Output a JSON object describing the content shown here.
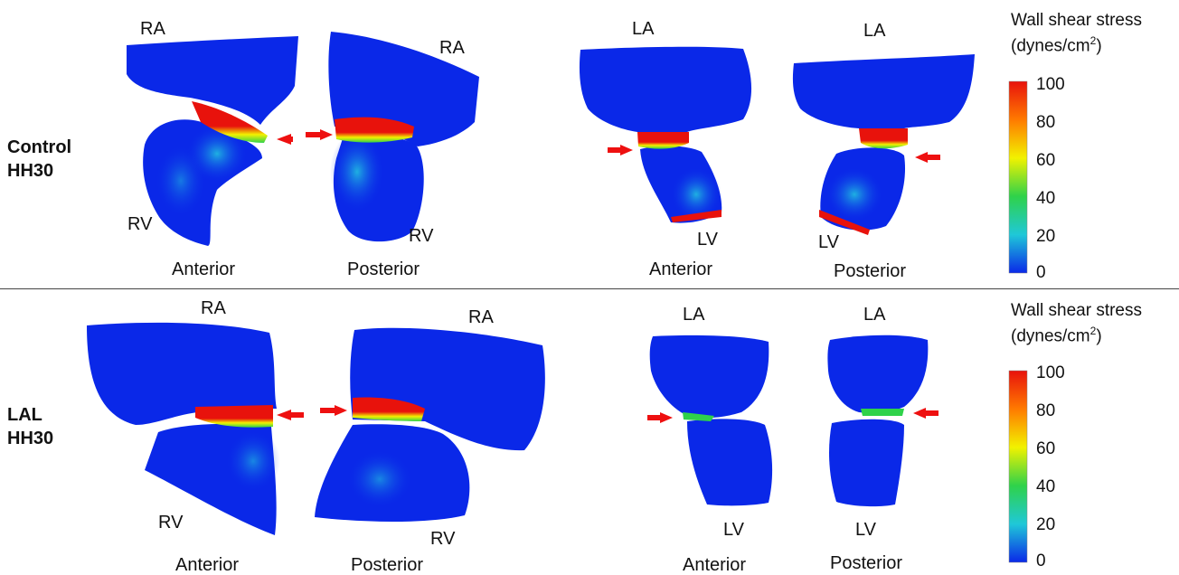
{
  "colors": {
    "low": "#0a28e8",
    "high": "#e8120c",
    "arrow": "#ee1010",
    "divider": "#444444"
  },
  "colorbar": {
    "title_line1": "Wall shear stress",
    "title_line2_prefix": "(dynes/cm",
    "title_line2_sup": "2",
    "title_line2_suffix": ")",
    "ticks": [
      "100",
      "80",
      "60",
      "40",
      "20",
      "0"
    ],
    "min": 0,
    "max": 100,
    "stops": [
      "#e8120c",
      "#ff7a00",
      "#f2f200",
      "#2fd24a",
      "#1fc8d8",
      "#0a28e8"
    ]
  },
  "rows": [
    {
      "label_line1": "Control",
      "label_line2": "HH30",
      "right_heart": {
        "atrium": "RA",
        "atrium2": "RA",
        "ventricle": "RV",
        "ventricle2": "RV",
        "view1": "Anterior",
        "view2": "Posterior"
      },
      "left_heart": {
        "atrium": "LA",
        "atrium2": "LA",
        "ventricle": "LV",
        "ventricle2": "LV",
        "view1": "Anterior",
        "view2": "Posterior"
      }
    },
    {
      "label_line1": "LAL",
      "label_line2": "HH30",
      "right_heart": {
        "atrium": "RA",
        "atrium2": "RA",
        "ventricle": "RV",
        "ventricle2": "RV",
        "view1": "Anterior",
        "view2": "Posterior"
      },
      "left_heart": {
        "atrium": "LA",
        "atrium2": "LA",
        "ventricle": "LV",
        "ventricle2": "LV",
        "view1": "Anterior",
        "view2": "Posterior"
      }
    }
  ]
}
